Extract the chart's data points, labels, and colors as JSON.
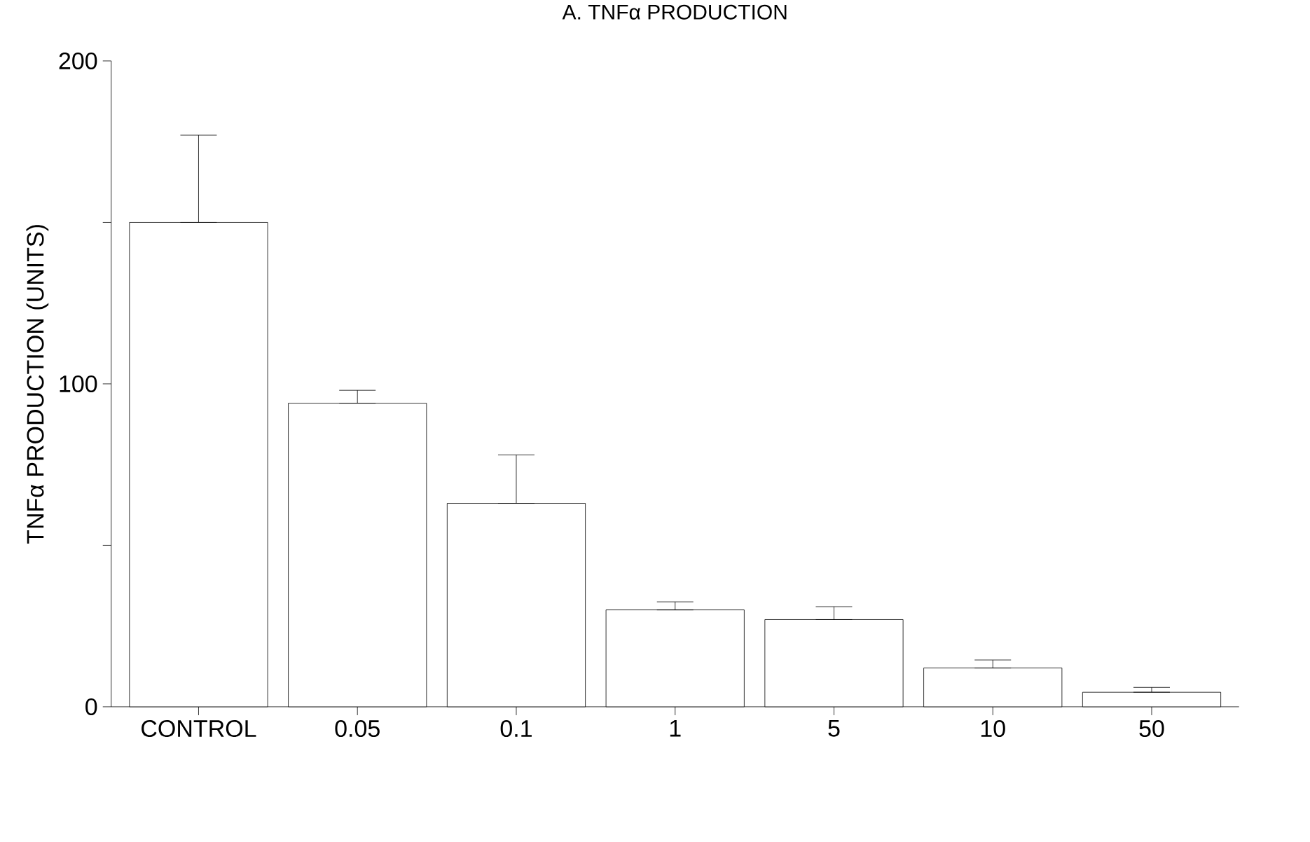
{
  "chart_data": {
    "type": "bar",
    "title": "A. TNFα PRODUCTION",
    "ylabel": "TNFα PRODUCTION (UNITS)",
    "categories": [
      "CONTROL",
      "0.05",
      "0.1",
      "1",
      "5",
      "10",
      "50"
    ],
    "values": [
      150,
      94,
      63,
      30,
      27,
      12,
      4.5
    ],
    "errors": [
      [
        150,
        177
      ],
      [
        94,
        98
      ],
      [
        63,
        78
      ],
      [
        30,
        32.5
      ],
      [
        27,
        31
      ],
      [
        12,
        14.5
      ],
      [
        4.5,
        6
      ]
    ],
    "color": "#ffffff",
    "ylim": [
      0,
      200
    ],
    "yticks": [
      0,
      {
        "value": 50,
        "label": null
      },
      100,
      {
        "value": 150,
        "label": null
      },
      200
    ],
    "grid": false
  }
}
